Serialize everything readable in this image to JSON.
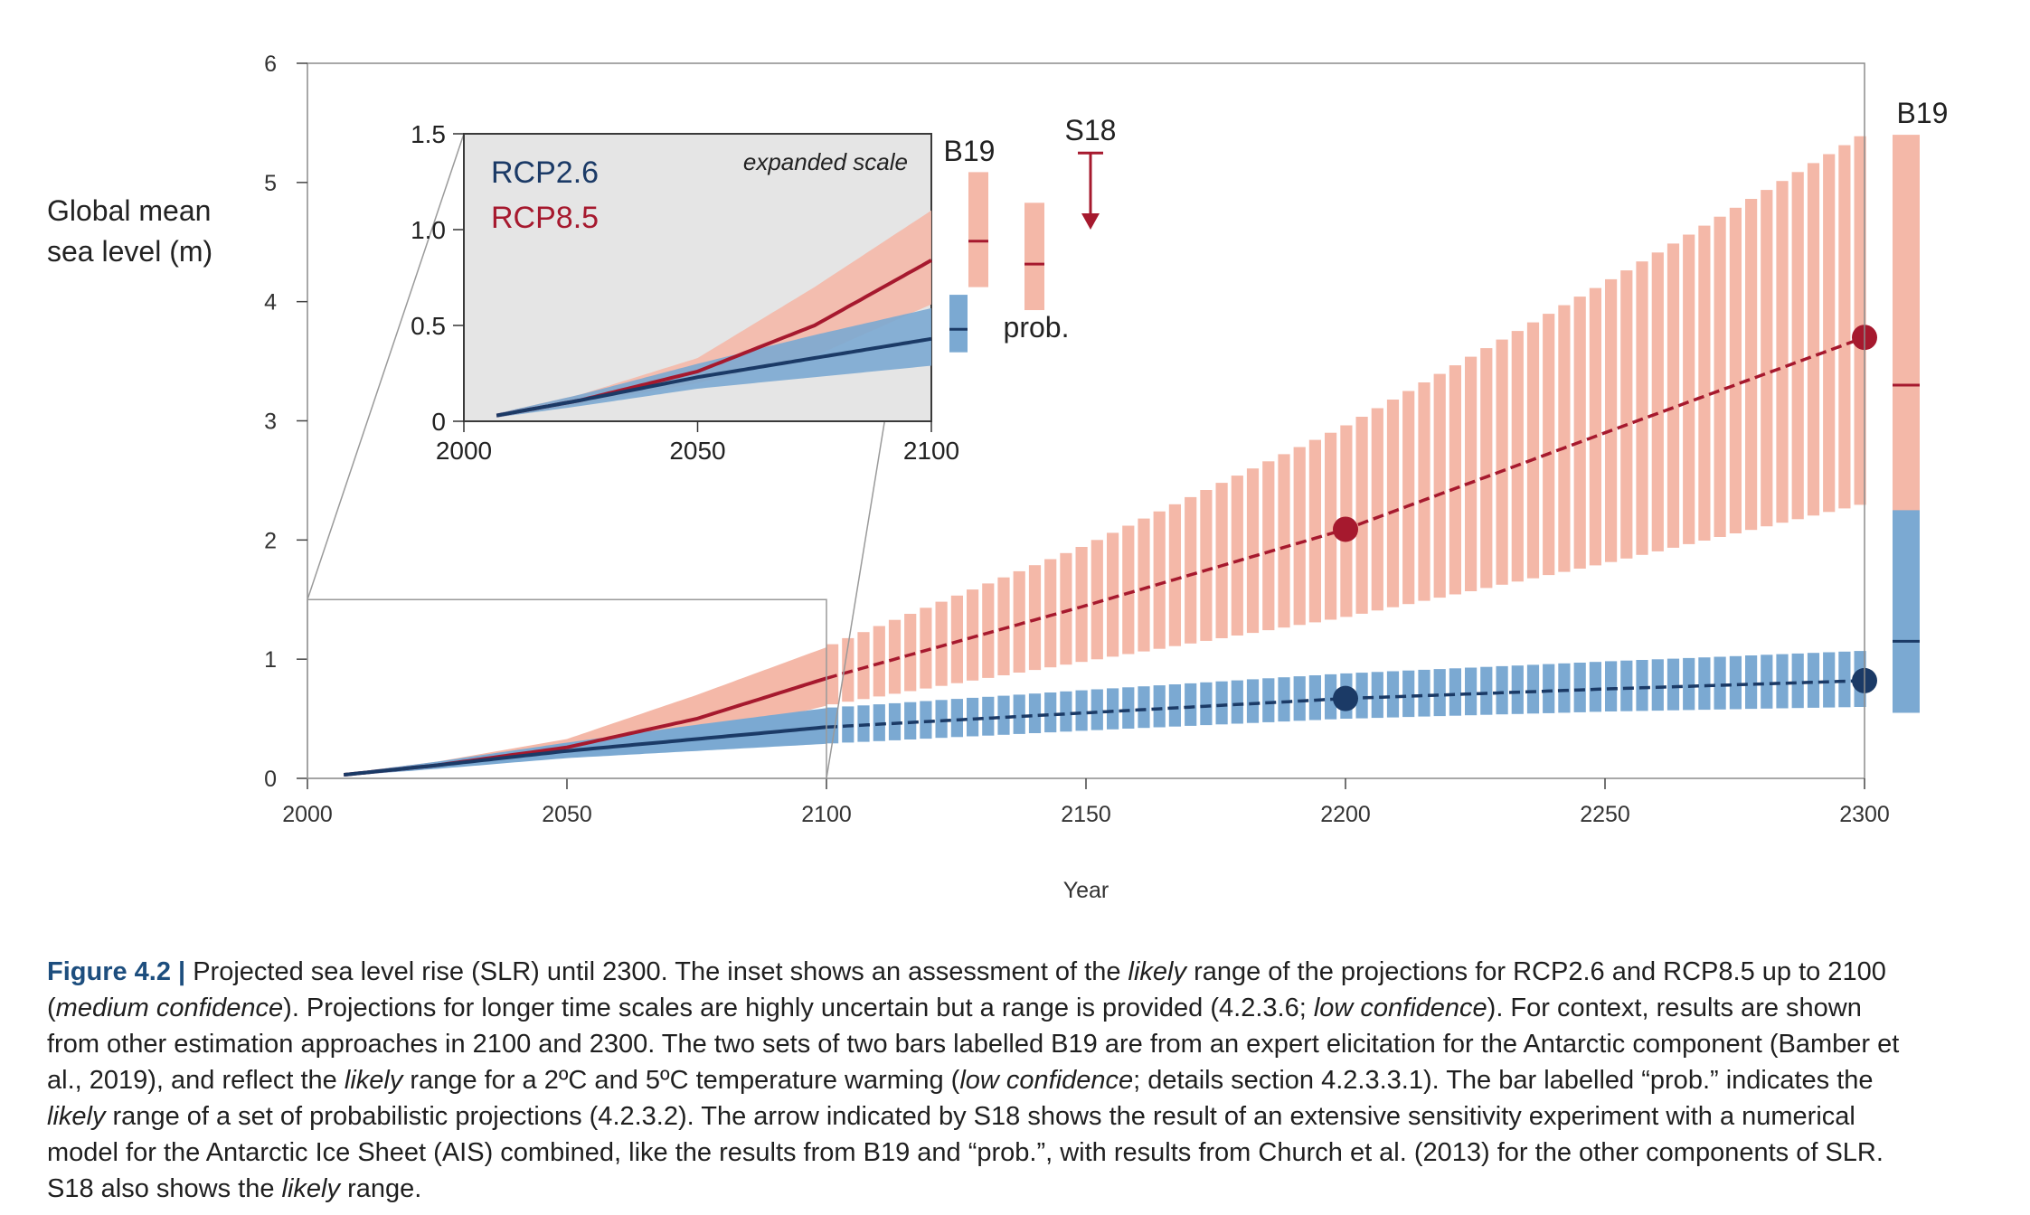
{
  "chart_data": [
    {
      "type": "line",
      "xlabel": "Year",
      "ylabel": "Global mean sea level (m)",
      "ylabel_lines": [
        "Global mean",
        "sea level (m)"
      ],
      "xlim": [
        2000,
        2300
      ],
      "ylim": [
        0,
        6
      ],
      "xticks": [
        2000,
        2050,
        2100,
        2150,
        2200,
        2250,
        2300
      ],
      "yticks": [
        0,
        1,
        2,
        3,
        4,
        5,
        6
      ],
      "grid": false,
      "series": [
        {
          "name": "RCP8.5",
          "color": "#a6192e",
          "band_color": "#f4b8a8",
          "median": [
            [
              2007,
              0.03
            ],
            [
              2025,
              0.11
            ],
            [
              2050,
              0.26
            ],
            [
              2075,
              0.5
            ],
            [
              2100,
              0.84
            ],
            [
              2150,
              1.45
            ],
            [
              2200,
              2.09
            ],
            [
              2250,
              2.9
            ],
            [
              2300,
              3.7
            ]
          ],
          "lower": [
            [
              2007,
              0.02
            ],
            [
              2025,
              0.09
            ],
            [
              2050,
              0.2
            ],
            [
              2075,
              0.34
            ],
            [
              2100,
              0.61
            ],
            [
              2150,
              0.98
            ],
            [
              2200,
              1.35
            ],
            [
              2250,
              1.8
            ],
            [
              2300,
              2.3
            ]
          ],
          "upper": [
            [
              2007,
              0.04
            ],
            [
              2025,
              0.14
            ],
            [
              2050,
              0.33
            ],
            [
              2075,
              0.7
            ],
            [
              2100,
              1.1
            ],
            [
              2150,
              1.95
            ],
            [
              2200,
              2.95
            ],
            [
              2250,
              4.15
            ],
            [
              2300,
              5.4
            ]
          ],
          "markers": [
            [
              2200,
              2.09
            ],
            [
              2300,
              3.7
            ]
          ]
        },
        {
          "name": "RCP2.6",
          "color": "#1b3a66",
          "band_color": "#7ba9d2",
          "median": [
            [
              2007,
              0.03
            ],
            [
              2025,
              0.11
            ],
            [
              2050,
              0.23
            ],
            [
              2075,
              0.33
            ],
            [
              2100,
              0.43
            ],
            [
              2150,
              0.55
            ],
            [
              2200,
              0.67
            ],
            [
              2250,
              0.75
            ],
            [
              2300,
              0.82
            ]
          ],
          "lower": [
            [
              2007,
              0.02
            ],
            [
              2025,
              0.08
            ],
            [
              2050,
              0.17
            ],
            [
              2075,
              0.23
            ],
            [
              2100,
              0.29
            ],
            [
              2150,
              0.4
            ],
            [
              2200,
              0.5
            ],
            [
              2250,
              0.56
            ],
            [
              2300,
              0.6
            ]
          ],
          "upper": [
            [
              2007,
              0.04
            ],
            [
              2025,
              0.14
            ],
            [
              2050,
              0.3
            ],
            [
              2075,
              0.45
            ],
            [
              2100,
              0.59
            ],
            [
              2150,
              0.74
            ],
            [
              2200,
              0.88
            ],
            [
              2250,
              0.98
            ],
            [
              2300,
              1.07
            ]
          ],
          "markers": [
            [
              2200,
              0.67
            ],
            [
              2300,
              0.82
            ]
          ]
        }
      ],
      "side_bars": [
        {
          "label": "B19",
          "year": 2300,
          "scenario": "5°C",
          "low": 2.0,
          "high": 5.4,
          "median": 3.3,
          "color": "#f4b8a8",
          "median_color": "#a6192e"
        },
        {
          "label": "",
          "year": 2300,
          "scenario": "2°C",
          "low": 0.55,
          "high": 2.25,
          "median": 1.15,
          "color": "#7ba9d2",
          "median_color": "#1b3a66"
        }
      ],
      "inset": {
        "note": "expanded scale",
        "xlim": [
          2000,
          2100
        ],
        "ylim": [
          0,
          1.5
        ],
        "xticks": [
          2000,
          2050,
          2100
        ],
        "yticks": [
          0,
          0.5,
          1.0,
          1.5
        ],
        "ytick_labels": [
          "0",
          "0.5",
          "1.0",
          "1.5"
        ],
        "legend": [
          "RCP2.6",
          "RCP8.5"
        ],
        "background": "#e5e5e5",
        "zoom_box": {
          "x": [
            2000,
            2100
          ],
          "y": [
            0,
            1.5
          ]
        },
        "bars": [
          {
            "label": "B19",
            "scenario": "5°C",
            "low": 0.7,
            "high": 1.3,
            "median": 0.94,
            "color": "#f4b8a8",
            "median_color": "#a6192e"
          },
          {
            "label": "",
            "scenario": "2°C",
            "low": 0.36,
            "high": 0.66,
            "median": 0.48,
            "color": "#7ba9d2",
            "median_color": "#1b3a66"
          },
          {
            "label": "prob.",
            "scenario": "RCP8.5",
            "low": 0.58,
            "high": 1.14,
            "median": 0.82,
            "color": "#f4b8a8",
            "median_color": "#a6192e"
          },
          {
            "label": "S18",
            "type": "arrow",
            "start": 1.4,
            "end": 1.0,
            "color": "#a6192e"
          }
        ]
      }
    }
  ],
  "caption": {
    "label": "Figure 4.2 |",
    "segments": [
      {
        "t": " Projected sea level rise (SLR) until 2300. The inset shows an assessment of the ",
        "i": false
      },
      {
        "t": "likely",
        "i": true
      },
      {
        "t": " range of the projections for RCP2.6 and RCP8.5 up to 2100 (",
        "i": false
      },
      {
        "t": "medium confidence",
        "i": true
      },
      {
        "t": "). Projections for longer time scales are highly uncertain but a range is provided (4.2.3.6; ",
        "i": false
      },
      {
        "t": "low confidence",
        "i": true
      },
      {
        "t": "). For context, results are shown from other estimation approaches in 2100 and 2300. The two sets of two bars labelled B19 are from an expert elicitation for the Antarctic component (Bamber et al., 2019), and reflect the ",
        "i": false
      },
      {
        "t": "likely",
        "i": true
      },
      {
        "t": " range for a 2ºC and 5ºC temperature warming (",
        "i": false
      },
      {
        "t": "low confidence",
        "i": true
      },
      {
        "t": "; details section 4.2.3.3.1). The bar labelled “prob.” indicates the ",
        "i": false
      },
      {
        "t": "likely",
        "i": true
      },
      {
        "t": " range of a set of probabilistic projections (4.2.3.2). The arrow indicated by S18 shows the result of an extensive sensitivity experiment with a numerical model for the Antarctic Ice Sheet (AIS) combined, like the results from B19 and “prob.”, with results from Church et al. (2013) for the other components of SLR. S18 also shows the ",
        "i": false
      },
      {
        "t": "likely",
        "i": true
      },
      {
        "t": " range.",
        "i": false
      }
    ]
  }
}
